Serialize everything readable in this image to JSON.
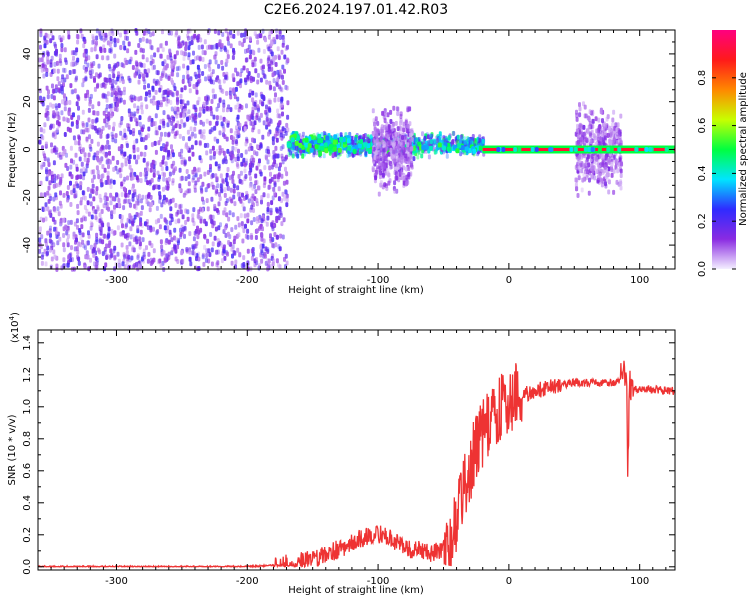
{
  "title": "C2E6.2024.197.01.42.R03",
  "chart_data": [
    {
      "type": "heatmap",
      "title": "C2E6.2024.197.01.42.R03",
      "xlabel": "Height of straight line (km)",
      "ylabel": "Frequency (Hz)",
      "xlim": [
        -360,
        127
      ],
      "ylim": [
        -50,
        50
      ],
      "xticks": [
        -300,
        -200,
        -100,
        0,
        100
      ],
      "xtick_labels": [
        "-300",
        "-200",
        "-100",
        "0",
        "100"
      ],
      "yticks": [
        -40,
        -20,
        0,
        20,
        40
      ],
      "ytick_labels": [
        "-40",
        "-20",
        "0",
        "20",
        "40"
      ],
      "colorbar": {
        "label": "Normalized spectral amplitude",
        "range": [
          0.0,
          1.0
        ],
        "ticks": [
          0.0,
          0.2,
          0.4,
          0.6,
          0.8
        ],
        "tick_labels": [
          "0.0",
          "0.2",
          "0.4",
          "0.6",
          "0.8"
        ],
        "colors": [
          "#f4efff",
          "#8a2be2",
          "#2f2bff",
          "#00e5ff",
          "#00ff40",
          "#c8ff00",
          "#ff8800",
          "#ff1a1a",
          "#ff007f"
        ]
      },
      "regions": [
        {
          "x": [
            -360,
            -170
          ],
          "y": [
            -50,
            50
          ],
          "amplitude": 0.15,
          "pattern": "broadband speckle"
        },
        {
          "x": [
            -170,
            -20
          ],
          "y": [
            -8,
            12
          ],
          "amplitude": 0.35,
          "pattern": "concentrated near 0 Hz"
        },
        {
          "x": [
            -105,
            -75
          ],
          "y": [
            -40,
            40
          ],
          "amplitude": 0.1,
          "pattern": "vertical burst"
        },
        {
          "x": [
            50,
            85
          ],
          "y": [
            -35,
            35
          ],
          "amplitude": 0.1,
          "pattern": "vertical burst"
        },
        {
          "x": [
            -20,
            127
          ],
          "y": [
            0,
            0
          ],
          "amplitude": 0.9,
          "pattern": "narrow line at 0 Hz"
        }
      ],
      "grid": false
    },
    {
      "type": "line",
      "xlabel": "Height of straight line (km)",
      "ylabel": "SNR (10 * v/v)",
      "y_multiplier": "(x10",
      "y_multiplier_exp": "4",
      "y_multiplier_close": ")",
      "xlim": [
        -360,
        127
      ],
      "ylim": [
        -0.02,
        1.48
      ],
      "xticks": [
        -300,
        -200,
        -100,
        0,
        100
      ],
      "xtick_labels": [
        "-300",
        "-200",
        "-100",
        "0",
        "100"
      ],
      "yticks": [
        0.0,
        0.2,
        0.4,
        0.6,
        0.8,
        1.0,
        1.2,
        1.4
      ],
      "ytick_labels": [
        "0.0",
        "0.2",
        "0.4",
        "0.6",
        "0.8",
        "1.0",
        "1.2",
        "1.4"
      ],
      "color": "#ee3333",
      "grid": false,
      "series": [
        {
          "x": [
            -360,
            -300,
            -200,
            -175,
            -150,
            -130,
            -115,
            -100,
            -90,
            -75,
            -60,
            -50,
            -45,
            -40,
            -35,
            -30,
            -25,
            -20,
            -15,
            -10,
            -5,
            0,
            10,
            20,
            30,
            40,
            50,
            60,
            70,
            80,
            85,
            88,
            90,
            91,
            92,
            95,
            100,
            110,
            120,
            127
          ],
          "y": [
            0.0,
            0.0,
            0.0,
            0.01,
            0.05,
            0.11,
            0.17,
            0.21,
            0.17,
            0.11,
            0.09,
            0.1,
            0.17,
            0.3,
            0.45,
            0.6,
            0.75,
            0.84,
            0.9,
            0.96,
            1.0,
            1.04,
            1.07,
            1.1,
            1.12,
            1.14,
            1.15,
            1.15,
            1.15,
            1.15,
            1.17,
            1.22,
            1.3,
            0.55,
            1.18,
            1.12,
            1.11,
            1.11,
            1.1,
            1.1
          ]
        }
      ]
    }
  ]
}
